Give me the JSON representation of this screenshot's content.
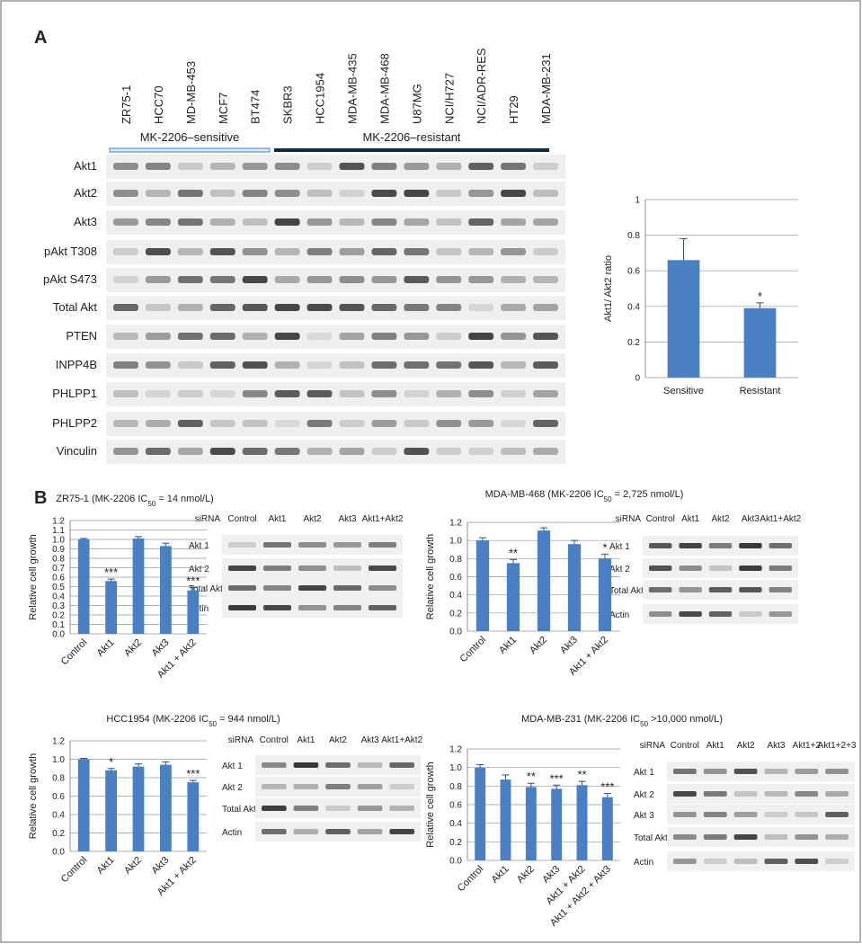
{
  "panel_a": {
    "label": "A",
    "cell_lines": [
      "ZR75-1",
      "HCC70",
      "MD-MB-453",
      "MCF7",
      "BT474",
      "SKBR3",
      "HCC1954",
      "MDA-MB-435",
      "MDA-MB-468",
      "U87MG",
      "NCI/H727",
      "NCI/ADR-RES",
      "HT29",
      "MDA-MB-231"
    ],
    "groups": [
      "MK-2206–sensitive",
      "MK-2206–resistant"
    ],
    "blot_rows": [
      "Akt1",
      "Akt2",
      "Akt3",
      "pAkt T308",
      "pAkt S473",
      "Total Akt",
      "PTEN",
      "INPP4B",
      "PHLPP1",
      "PHLPP2",
      "Vinculin"
    ]
  },
  "panel_b": {
    "label": "B"
  },
  "blots": [
    {
      "header": "siRNA",
      "lanes": [
        "Control",
        "Akt1",
        "Akt2",
        "Akt3",
        "Akt1+Akt2"
      ],
      "rows": [
        "Akt 1",
        "Akt 2",
        "Total Akt",
        "Actin"
      ]
    },
    {
      "header": "siRNA",
      "lanes": [
        "Control",
        "Akt1",
        "Akt2",
        "Akt3",
        "Akt1+Akt2"
      ],
      "rows": [
        "Akt 1",
        "Akt 2",
        "Total Akt",
        "Actin"
      ]
    },
    {
      "header": "siRNA",
      "lanes": [
        "Control",
        "Akt1",
        "Akt2",
        "Akt3",
        "Akt1+Akt2"
      ],
      "rows": [
        "Akt 1",
        "Akt 2",
        "Total Akt",
        "Actin"
      ]
    },
    {
      "header": "siRNA",
      "lanes": [
        "Control",
        "Akt1",
        "Akt2",
        "Akt3",
        "Akt1+2",
        "Akt1+2+3"
      ],
      "rows": [
        "Akt 1",
        "Akt 2",
        "Akt 3",
        "Total Akt",
        "Actin"
      ]
    }
  ],
  "chart_data": [
    {
      "type": "bar",
      "ylabel": "Akt1/ Akt2 ratio",
      "color": "#4a7fc1",
      "grid": true,
      "categories": [
        "Sensitive",
        "Resistant"
      ],
      "values": [
        0.66,
        0.39
      ],
      "errors": [
        0.12,
        0.03
      ],
      "significance": [
        null,
        "*"
      ],
      "ylim": [
        0,
        1
      ],
      "yticks": [
        0,
        0.2,
        0.4,
        0.6,
        0.8,
        1
      ]
    },
    {
      "type": "bar",
      "title": [
        "ZR75-1 (MK-2206 IC",
        "50",
        " = 14 nmol/L)"
      ],
      "ylabel": "Relative cell growth",
      "color": "#4a7fc1",
      "grid": true,
      "categories": [
        "Control",
        "Akt1",
        "Akt2",
        "Akt3",
        "Akt1 + Akt2"
      ],
      "values": [
        1.0,
        0.56,
        1.01,
        0.93,
        0.46
      ],
      "errors": [
        0.01,
        0.02,
        0.02,
        0.03,
        0.03
      ],
      "significance": [
        null,
        "***",
        null,
        null,
        "***"
      ],
      "ylim": [
        0,
        1.2
      ],
      "yticks": [
        {
          "value": 0,
          "label": "0.0"
        },
        0.1,
        0.2,
        0.3,
        0.4,
        0.5,
        0.6,
        0.7,
        0.8,
        0.9,
        {
          "value": 1,
          "label": "1.0"
        },
        1.1,
        1.2
      ]
    },
    {
      "type": "bar",
      "title": [
        "MDA-MB-468 (MK-2206 IC",
        "50",
        " = 2,725 nmol/L)"
      ],
      "ylabel": "Relative cell growth",
      "color": "#4a7fc1",
      "grid": true,
      "categories": [
        "Control",
        "Akt1",
        "Akt2",
        "Akt3",
        "Akt1 + Akt2"
      ],
      "values": [
        1.0,
        0.75,
        1.11,
        0.96,
        0.8
      ],
      "errors": [
        0.03,
        0.04,
        0.03,
        0.04,
        0.05
      ],
      "significance": [
        null,
        "**",
        null,
        null,
        "*"
      ],
      "ylim": [
        0,
        1.2
      ],
      "yticks": [
        {
          "value": 0,
          "label": "0.0"
        },
        0.2,
        0.4,
        0.6,
        0.8,
        {
          "value": 1,
          "label": "1.0"
        },
        1.2
      ]
    },
    {
      "type": "bar",
      "title": [
        "HCC1954 (MK-2206 IC",
        "50",
        " = 944 nmol/L)"
      ],
      "ylabel": "Relative cell growth",
      "color": "#4a7fc1",
      "grid": true,
      "categories": [
        "Control",
        "Akt1",
        "Akt2",
        "Akt3",
        "Akt1 + Akt2"
      ],
      "values": [
        1.0,
        0.88,
        0.92,
        0.94,
        0.75
      ],
      "errors": [
        0.01,
        0.02,
        0.03,
        0.03,
        0.02
      ],
      "significance": [
        null,
        "*",
        null,
        null,
        "***"
      ],
      "ylim": [
        0,
        1.2
      ],
      "yticks": [
        {
          "value": 0,
          "label": "0.0"
        },
        0.2,
        0.4,
        0.6,
        0.8,
        {
          "value": 1,
          "label": "1.0"
        },
        1.2
      ]
    },
    {
      "type": "bar",
      "title": [
        "MDA-MB-231 (MK-2206 IC",
        "50",
        " >10,000 nmol/L)"
      ],
      "ylabel": "Relative cell growth",
      "color": "#4a7fc1",
      "grid": true,
      "categories": [
        "Control",
        "Akt1",
        "Akt2",
        "Akt3",
        "Akt1 + Akt2",
        "Akt1 + Akt2 + Akt3"
      ],
      "values": [
        1.0,
        0.87,
        0.79,
        0.77,
        0.81,
        0.68
      ],
      "errors": [
        0.03,
        0.05,
        0.04,
        0.04,
        0.04,
        0.04
      ],
      "significance": [
        null,
        null,
        "**",
        "***",
        "**",
        "***"
      ],
      "ylim": [
        0,
        1.2
      ],
      "yticks": [
        {
          "value": 0,
          "label": "0.0"
        },
        0.2,
        0.4,
        0.6,
        0.8,
        {
          "value": 1,
          "label": "1.0"
        },
        1.2
      ]
    }
  ]
}
